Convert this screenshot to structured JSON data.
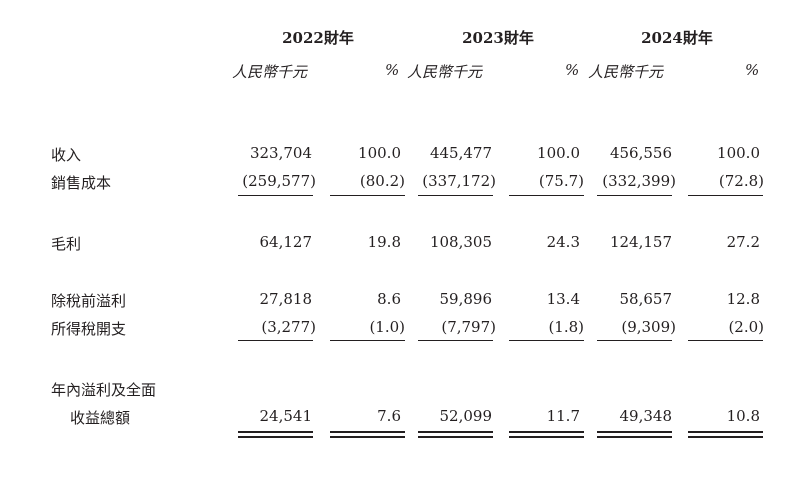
{
  "header": {
    "years": [
      "2022財年",
      "2023財年",
      "2024財年"
    ],
    "unit_rmb": "人民幣千元",
    "unit_pct": "%"
  },
  "rows": [
    {
      "label": "收入",
      "v": [
        "323,704",
        "100.0",
        "445,477",
        "100.0",
        "456,556",
        "100.0"
      ]
    },
    {
      "label": "銷售成本",
      "v": [
        "(259,577)",
        "(80.2)",
        "(337,172)",
        "(75.7)",
        "(332,399)",
        "(72.8)"
      ]
    },
    {
      "label": "毛利",
      "v": [
        "64,127",
        "19.8",
        "108,305",
        "24.3",
        "124,157",
        "27.2"
      ]
    },
    {
      "label": "除稅前溢利",
      "v": [
        "27,818",
        "8.6",
        "59,896",
        "13.4",
        "58,657",
        "12.8"
      ]
    },
    {
      "label": "所得稅開支",
      "v": [
        "(3,277)",
        "(1.0)",
        "(7,797)",
        "(1.8)",
        "(9,309)",
        "(2.0)"
      ]
    },
    {
      "label": "年內溢利及全面",
      "label2": "收益總額",
      "v": [
        "24,541",
        "7.6",
        "52,099",
        "11.7",
        "49,348",
        "10.8"
      ]
    }
  ]
}
